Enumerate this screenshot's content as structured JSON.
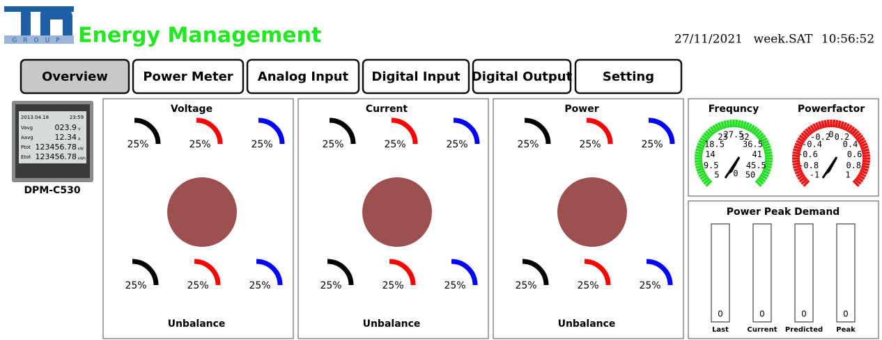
{
  "header": {
    "logo_subtitle": "GROUP",
    "title": "Energy Management",
    "date": "27/11/2021",
    "weekday": "week.SAT",
    "time": "10:56:52"
  },
  "tabs": [
    "Overview",
    "Power Meter",
    "Analog Input",
    "Digital Input",
    "Digital Output",
    "Setting"
  ],
  "device": {
    "model": "DPM-C530",
    "screen": {
      "date": "2013.04.18",
      "time": "23:59",
      "rows": [
        [
          "Vavg",
          "023.9",
          "V"
        ],
        [
          "Aavg",
          "12.34",
          "A"
        ],
        [
          "Ptot",
          "123456.78",
          "kW"
        ],
        [
          "Etot",
          "123456.78",
          "kWh"
        ]
      ]
    }
  },
  "panels": [
    {
      "title": "Voltage",
      "gauges_top": [
        "25%",
        "25%",
        "25%"
      ],
      "gauges_bottom": [
        "25%",
        "25%",
        "25%"
      ],
      "footer": "Unbalance"
    },
    {
      "title": "Current",
      "gauges_top": [
        "25%",
        "25%",
        "25%"
      ],
      "gauges_bottom": [
        "25%",
        "25%",
        "25%"
      ],
      "footer": "Unbalance"
    },
    {
      "title": "Power",
      "gauges_top": [
        "25%",
        "25%",
        "25%"
      ],
      "gauges_bottom": [
        "25%",
        "25%",
        "25%"
      ],
      "footer": "Unbalance"
    }
  ],
  "frequency": {
    "title": "Frequncy",
    "scale": [
      "5",
      "9.5",
      "14",
      "18.5",
      "23",
      "27.5",
      "32",
      "36.5",
      "41",
      "45.5",
      "50"
    ],
    "reading": "0"
  },
  "powerfactor": {
    "title": "Powerfactor",
    "scale": [
      "-1",
      "-0.8",
      "-0.6",
      "-0.4",
      "-0.2",
      "0",
      "0.2",
      "0.4",
      "0.6",
      "0.8",
      "1"
    ]
  },
  "peak_demand": {
    "title": "Power Peak Demand",
    "bars": [
      {
        "label": "Last",
        "value": "0"
      },
      {
        "label": "Current",
        "value": "0"
      },
      {
        "label": "Predicted",
        "value": "0"
      },
      {
        "label": "Peak",
        "value": "0"
      }
    ]
  }
}
